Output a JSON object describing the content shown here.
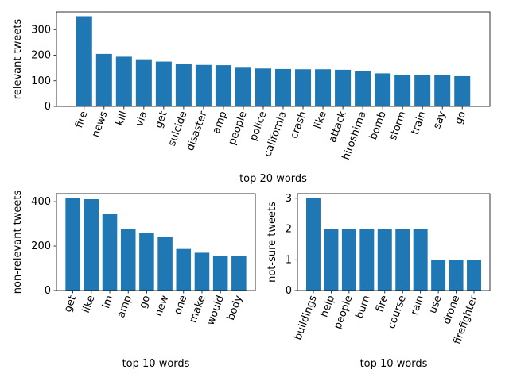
{
  "figure": {
    "background": "#ffffff",
    "bar_color": "#1f77b4"
  },
  "chart_data": [
    {
      "type": "bar",
      "title": "",
      "xlabel": "top 20 words",
      "ylabel": "relevant tweets",
      "categories": [
        "fire",
        "news",
        "kill",
        "via",
        "get",
        "suicide",
        "disaster",
        "amp",
        "people",
        "police",
        "california",
        "crash",
        "like",
        "attack",
        "hiroshima",
        "bomb",
        "storm",
        "train",
        "say",
        "go"
      ],
      "values": [
        352,
        205,
        194,
        184,
        175,
        166,
        162,
        161,
        151,
        148,
        146,
        145,
        145,
        143,
        137,
        129,
        124,
        124,
        123,
        118
      ],
      "ylim": [
        0,
        369
      ],
      "yticks": [
        0,
        100,
        200,
        300
      ],
      "grid": false,
      "legend": "none"
    },
    {
      "type": "bar",
      "title": "",
      "xlabel": "top 10 words",
      "ylabel": "non-relevant tweets",
      "categories": [
        "get",
        "like",
        "im",
        "amp",
        "go",
        "new",
        "one",
        "make",
        "would",
        "body"
      ],
      "values": [
        415,
        411,
        345,
        277,
        258,
        240,
        187,
        170,
        156,
        155
      ],
      "ylim": [
        0,
        436
      ],
      "yticks": [
        0,
        200,
        400
      ],
      "grid": false,
      "legend": "none"
    },
    {
      "type": "bar",
      "title": "",
      "xlabel": "top 10 words",
      "ylabel": "not-sure tweets",
      "categories": [
        "buildings",
        "help",
        "people",
        "burn",
        "fire",
        "course",
        "rain",
        "use",
        "drone",
        "firefighter"
      ],
      "values": [
        3,
        2,
        2,
        2,
        2,
        2,
        2,
        1,
        1,
        1
      ],
      "ylim": [
        0,
        3.15
      ],
      "yticks": [
        0,
        1,
        2,
        3
      ],
      "grid": false,
      "legend": "none"
    }
  ]
}
